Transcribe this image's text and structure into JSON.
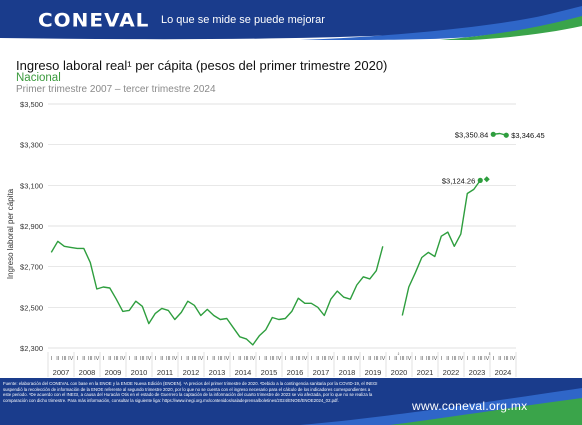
{
  "header": {
    "logo": "CONEVAL",
    "slogan": "Lo que se mide se puede mejorar",
    "colors": {
      "navy": "#1a3c8c",
      "blue": "#2f66c8",
      "green": "#3aa44a"
    }
  },
  "footer": {
    "notes": "Fuente: elaboración del CONEVAL con base en la ENOE y la ENOE Nueva Edición (ENOEN). ¹A precios del primer trimestre de 2020. ²Debido a la contingencia sanitaria por la COVID-19, el INEGI suspendió la recolección de información de la ENOE referente al segundo trimestre 2020, por lo que no se cuenta con el ingreso necesario para el cálculo de los indicadores correspondientes a este periodo. ³De acuerdo con el INEGI, a causa del Huracán Otis en el estado de Guerrero la captación de la información del cuarto trimestre de 2023 se vio afectada, por lo que no se realiza la comparación con dicho trimestre. Para más información, consultar la siguiente liga: https://www.inegi.org.mx/contenidos/saladeprensa/boletines/2024/ENOE/ENOE2024_02.pdf.",
    "url": "www.coneval.org.mx"
  },
  "chart_data": {
    "type": "line",
    "title": "Ingreso laboral real¹ per cápita (pesos del primer trimestre 2020)",
    "subtitle": "Nacional",
    "period": "Primer trimestre 2007 – tercer trimestre 2024",
    "ylabel": "Ingreso laboral per cápita",
    "ylim": [
      2300,
      3500
    ],
    "yticks": [
      "$2,300",
      "$2,500",
      "$2,700",
      "$2,900",
      "$3,100",
      "$3,300",
      "$3,500"
    ],
    "grid": true,
    "years": [
      "2007",
      "2008",
      "2009",
      "2010",
      "2011",
      "2012",
      "2013",
      "2014",
      "2015",
      "2016",
      "2017",
      "2018",
      "2019",
      "2020",
      "2021",
      "2022",
      "2023",
      "2024"
    ],
    "quarter_labels": [
      "I",
      "II",
      "III",
      "IV"
    ],
    "break_labels": [
      "²",
      "³"
    ],
    "series": [
      {
        "color": "#2e9e3e",
        "segments": [
          {
            "start": "2007-Q1",
            "values": [
              2770,
              2825,
              2800,
              2795,
              2790,
              2790,
              2720,
              2590,
              2600,
              2595,
              2540,
              2480,
              2485,
              2530,
              2505,
              2420,
              2470,
              2495,
              2485,
              2440,
              2475,
              2530,
              2510,
              2460,
              2490,
              2460,
              2440,
              2445,
              2400,
              2355,
              2345,
              2315,
              2360,
              2390,
              2450,
              2440,
              2445,
              2480,
              2545,
              2520,
              2520,
              2500,
              2460,
              2540,
              2580,
              2550,
              2540,
              2610,
              2650,
              2640,
              2680,
              2800
            ]
          },
          {
            "start": "2020-Q3",
            "values": [
              2460,
              2600,
              2670,
              2745,
              2770,
              2750,
              2850,
              2870,
              2800,
              2860,
              3060,
              3080,
              3124.26
            ]
          },
          {
            "start": "2024-Q1",
            "values": [
              3350.84,
              3355,
              3346.45
            ]
          }
        ],
        "markers": [
          {
            "at": "2023-Q3",
            "value": 3124.26,
            "shape": "circle",
            "label": "$3,124.26"
          },
          {
            "at": "2023-Q4",
            "value": 3130,
            "shape": "diamond"
          },
          {
            "at": "2024-Q1",
            "value": 3350.84,
            "shape": "circle",
            "label": "$3,350.84"
          },
          {
            "at": "2024-Q3",
            "value": 3346.45,
            "shape": "circle",
            "label": "$3,346.45"
          }
        ]
      }
    ]
  }
}
